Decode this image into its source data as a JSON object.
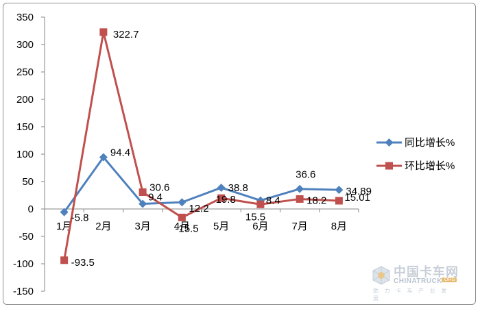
{
  "chart_data": {
    "type": "line",
    "categories": [
      "1月",
      "2月",
      "3月",
      "4月",
      "5月",
      "6月",
      "7月",
      "8月"
    ],
    "ylim": [
      -150,
      350
    ],
    "yticks": [
      350,
      300,
      250,
      200,
      150,
      100,
      50,
      0,
      -50,
      -100,
      -150
    ],
    "grid": false,
    "legend_position": "right",
    "series": [
      {
        "name": "同比增长%",
        "color": "#4f81bd",
        "marker": "diamond",
        "values": [
          -5.8,
          94.4,
          9.4,
          12.2,
          38.8,
          15.5,
          36.6,
          34.89
        ],
        "labels": [
          "-5.8",
          "94.4",
          "9.4",
          "12.2",
          "38.8",
          "15.5",
          "36.6",
          "34.89"
        ]
      },
      {
        "name": "环比增长%",
        "color": "#c0504d",
        "marker": "square",
        "values": [
          -93.5,
          322.7,
          30.6,
          -15.5,
          19.8,
          8.4,
          18.2,
          15.01
        ],
        "labels": [
          "-93.5",
          "322.7",
          "30.6",
          "-15.5",
          "19.8",
          "8.4",
          "18.2",
          "15.01"
        ]
      }
    ]
  },
  "watermark": {
    "logo_text": "中国卡车网",
    "logo_subtext": "CHINATRUCK",
    "logo_suffix": ".ORG",
    "slogan": "助 力 卡 车 产 业 发 展"
  }
}
